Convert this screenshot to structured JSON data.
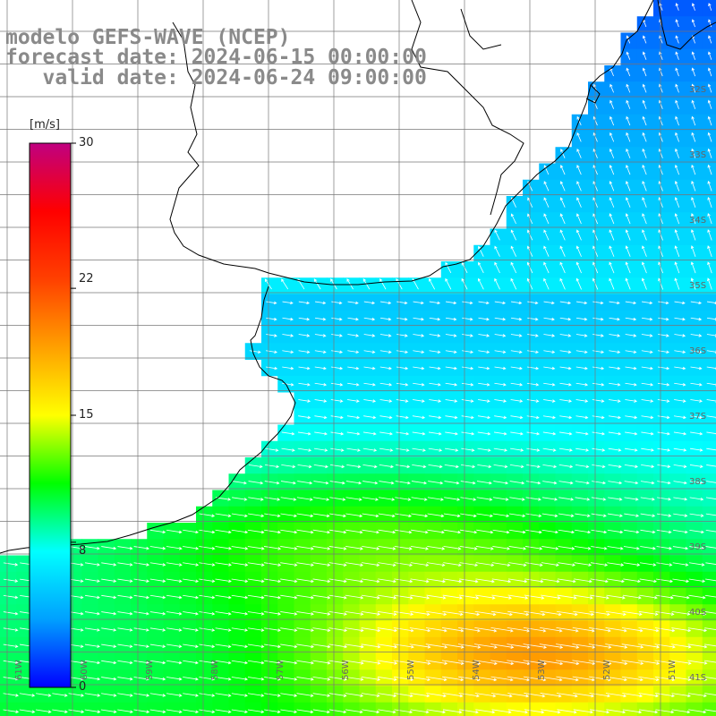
{
  "title": {
    "line1": "modelo GEFS-WAVE (NCEP)",
    "line2": "forecast date: 2024-06-15 00:00:00",
    "line3": "   valid date: 2024-06-24 09:00:00"
  },
  "colorbar": {
    "unit": "[m/s]",
    "ticks": [
      "30",
      "22",
      "15",
      "8",
      "0"
    ],
    "tick_values": [
      30,
      22,
      15,
      8,
      0
    ],
    "range": [
      0,
      30
    ],
    "colors": [
      "#0000ff",
      "#00a0ff",
      "#00ffff",
      "#00ff00",
      "#ffff00",
      "#ffa000",
      "#ff4000",
      "#ff0000",
      "#c00080"
    ]
  },
  "map": {
    "land_color": "#ffffff",
    "coast_color": "#000000",
    "grid_color": "#777777",
    "lat_labels": [
      "32S",
      "33S",
      "34S",
      "35S",
      "36S",
      "37S",
      "38S",
      "39S",
      "40S",
      "41S"
    ],
    "lon_labels": [
      "61W",
      "60W",
      "59W",
      "58W",
      "57W",
      "56W",
      "55W",
      "54W",
      "53W",
      "52W",
      "51W"
    ],
    "lat_range": [
      -41.5,
      -30
    ],
    "lon_range": [
      -62,
      -51
    ]
  }
}
